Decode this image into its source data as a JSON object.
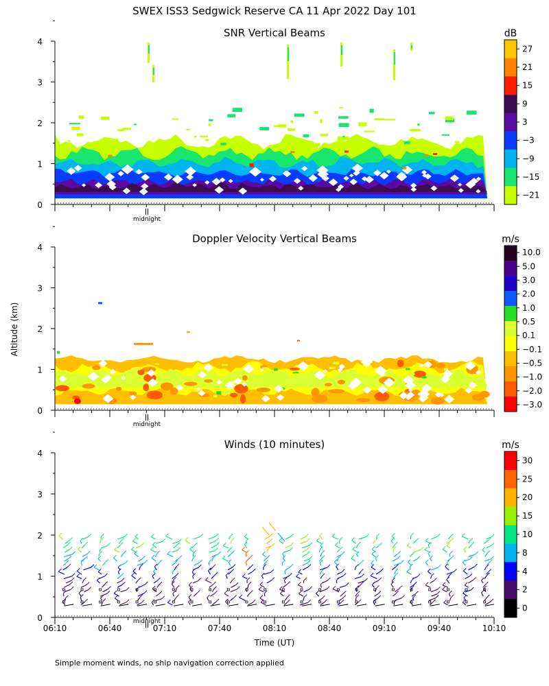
{
  "title": "SWEX ISS3 Sedgwick Reserve CA  11 Apr 2022 Day 101",
  "ylabel": "Altitude (km)",
  "xlabel": "Time (UT)",
  "footnote": "Simple moment winds, no ship navigation correction applied",
  "midnight_label": "midnight",
  "colors": {
    "snr_scale": [
      "#c8ff00",
      "#19e66e",
      "#00b4f0",
      "#0a3cff",
      "#5a0aa0",
      "#3c0a50",
      "#ff1e00",
      "#ff8200",
      "#ffc800"
    ],
    "velocity_scale": [
      "#ff0000",
      "#ff5a00",
      "#ff9600",
      "#ffbe00",
      "#ffff00",
      "#dcff32",
      "#28dc28",
      "#0a5aff",
      "#1e00c8",
      "#4b008c",
      "#280020"
    ],
    "wind_scale": [
      "#000000",
      "#4b0a6e",
      "#0000ff",
      "#00b4f0",
      "#00e680",
      "#96f000",
      "#ffb400",
      "#ff6400",
      "#ff0000"
    ]
  },
  "chart_data": [
    {
      "type": "heatmap",
      "title": "SNR Vertical Beams",
      "units": "dB",
      "xlim": [
        "06:10",
        "10:10"
      ],
      "ylim": [
        0,
        4
      ],
      "yticks": [
        "0",
        "1",
        "2",
        "3",
        "4"
      ],
      "colorbar_ticks": [
        "27",
        "21",
        "15",
        "9",
        "3",
        "−3",
        "−9",
        "−15",
        "−21"
      ],
      "profile": [
        {
          "altitude_km": 0.3,
          "snr_db": 3
        },
        {
          "altitude_km": 0.6,
          "snr_db": 0
        },
        {
          "altitude_km": 0.9,
          "snr_db": -9
        },
        {
          "altitude_km": 1.2,
          "snr_db": -15
        },
        {
          "altitude_km": 1.5,
          "snr_db": -21
        }
      ]
    },
    {
      "type": "heatmap",
      "title": "Doppler Velocity Vertical Beams",
      "units": "m/s",
      "xlim": [
        "06:10",
        "10:10"
      ],
      "ylim": [
        0,
        4
      ],
      "yticks": [
        "0",
        "1",
        "2",
        "3",
        "4"
      ],
      "colorbar_ticks": [
        "10.0",
        "5.0",
        "3.0",
        "2.0",
        "1.0",
        "0.5",
        "0.1",
        "−0.1",
        "−0.5",
        "−1.0",
        "−2.0",
        "−3.0"
      ],
      "profile": [
        {
          "altitude_km": 0.3,
          "velocity_ms": -0.3
        },
        {
          "altitude_km": 0.8,
          "velocity_ms": -0.2
        },
        {
          "altitude_km": 1.1,
          "velocity_ms": -0.6
        }
      ]
    },
    {
      "type": "scatter",
      "title": "Winds (10 minutes)",
      "units": "m/s",
      "xlim": [
        "06:10",
        "10:10"
      ],
      "ylim": [
        0,
        4
      ],
      "yticks": [
        "0",
        "1",
        "2",
        "3",
        "4"
      ],
      "xticks": [
        "06:10",
        "06:40",
        "07:10",
        "07:40",
        "08:10",
        "08:40",
        "09:10",
        "09:40",
        "10:10"
      ],
      "colorbar_ticks": [
        "30",
        "25",
        "20",
        "15",
        "10",
        "8",
        "4",
        "2",
        "0"
      ],
      "wind_profiles_utc": [
        "06:15",
        "06:25",
        "06:35",
        "06:45",
        "06:55",
        "07:05",
        "07:15",
        "07:25",
        "07:35",
        "07:45",
        "07:55",
        "08:05",
        "08:15",
        "08:25",
        "08:35",
        "08:45",
        "08:55",
        "09:05",
        "09:15",
        "09:25",
        "09:35",
        "09:45",
        "09:55",
        "10:05"
      ],
      "max_wind_height_km": 1.9
    }
  ]
}
